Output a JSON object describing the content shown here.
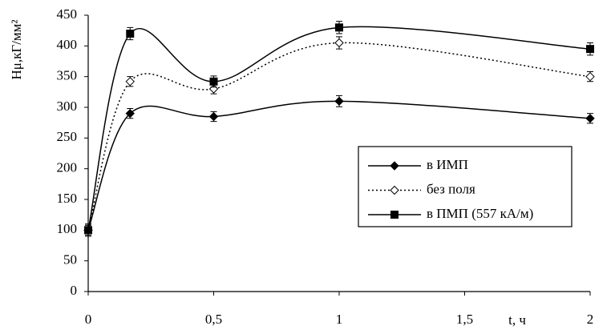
{
  "chart_data": {
    "type": "line",
    "ylabel": "Hμ,кГ/мм²",
    "xlabel": "t, ч",
    "x": [
      0,
      0.167,
      0.5,
      1,
      2
    ],
    "series": [
      {
        "name": "в ИМП",
        "color": "#000000",
        "dash": "solid",
        "marker": "diamond",
        "values": [
          100,
          290,
          285,
          310,
          282
        ],
        "errors": [
          8,
          8,
          8,
          9,
          8
        ]
      },
      {
        "name": "без поля",
        "color": "#000000",
        "dash": "dotted",
        "marker": "open-diamond",
        "values": [
          100,
          342,
          330,
          405,
          350
        ],
        "errors": [
          8,
          8,
          8,
          10,
          8
        ]
      },
      {
        "name": "в ПМП (557 кА/м)",
        "color": "#000000",
        "dash": "solid",
        "marker": "square",
        "values": [
          100,
          420,
          342,
          430,
          395
        ],
        "errors": [
          10,
          10,
          9,
          10,
          10
        ]
      }
    ],
    "xlim": [
      0,
      2
    ],
    "xticks": [
      0,
      {
        "value": 0.5,
        "label": "0,5"
      },
      1,
      {
        "value": 1.5,
        "label": "1,5"
      },
      2
    ],
    "ylim": [
      0,
      450
    ],
    "yticks": [
      0,
      50,
      100,
      150,
      200,
      250,
      300,
      350,
      400,
      450
    ],
    "grid": false
  }
}
